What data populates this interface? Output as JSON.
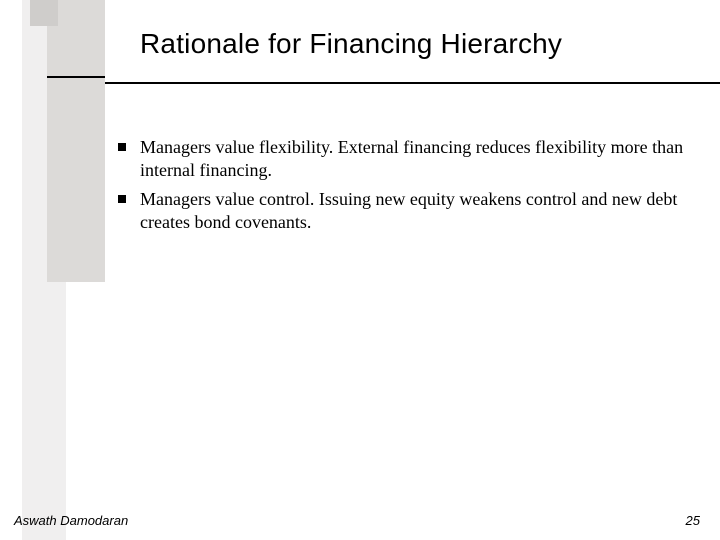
{
  "slide": {
    "title": "Rationale for Financing Hierarchy",
    "bullets": [
      "Managers value flexibility. External financing reduces flexibility more than internal financing.",
      "Managers value control. Issuing new equity weakens control and new debt creates bond covenants."
    ],
    "footer_author": "Aswath Damodaran",
    "footer_page": "25"
  },
  "colors": {
    "bar_outer": "#f0efef",
    "bar_inner": "#dcdad8",
    "bar_top": "#cfcdcb",
    "text": "#000000",
    "background": "#ffffff"
  }
}
